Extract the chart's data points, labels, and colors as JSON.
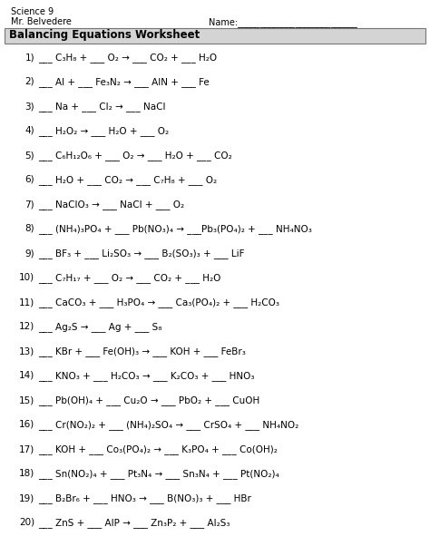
{
  "title": "Balancing Equations Worksheet",
  "header_line1": "Science 9",
  "header_line2": "Mr. Belvedere",
  "name_label": "Name:___________________________",
  "background": "#ffffff",
  "header_bg": "#d4d4d4",
  "fig_width": 4.74,
  "fig_height": 6.13,
  "dpi": 100,
  "equations": [
    [
      "1)",
      "___ C₃H₈ + ___ O₂ → ___ CO₂ + ___ H₂O"
    ],
    [
      "2)",
      "___ Al + ___ Fe₃N₂ → ___ AlN + ___ Fe"
    ],
    [
      "3)",
      "___ Na + ___ Cl₂ → ___ NaCl"
    ],
    [
      "4)",
      "___ H₂O₂ → ___ H₂O + ___ O₂"
    ],
    [
      "5)",
      "___ C₆H₁₂O₆ + ___ O₂ → ___ H₂O + ___ CO₂"
    ],
    [
      "6)",
      "___ H₂O + ___ CO₂ → ___ C₇H₈ + ___ O₂"
    ],
    [
      "7)",
      "___ NaClO₃ → ___ NaCl + ___ O₂"
    ],
    [
      "8)",
      "___ (NH₄)₃PO₄ + ___ Pb(NO₃)₄ → ___Pb₃(PO₄)₂ + ___ NH₄NO₃"
    ],
    [
      "9)",
      "___ BF₃ + ___ Li₂SO₃ → ___ B₂(SO₃)₃ + ___ LiF"
    ],
    [
      "10)",
      "___ C₇H₁₇ + ___ O₂ → ___ CO₂ + ___ H₂O"
    ],
    [
      "11)",
      "___ CaCO₃ + ___ H₃PO₄ → ___ Ca₃(PO₄)₂ + ___ H₂CO₃"
    ],
    [
      "12)",
      "___ Ag₂S → ___ Ag + ___ S₈"
    ],
    [
      "13)",
      "___ KBr + ___ Fe(OH)₃ → ___ KOH + ___ FeBr₃"
    ],
    [
      "14)",
      "___ KNO₃ + ___ H₂CO₃ → ___ K₂CO₃ + ___ HNO₃"
    ],
    [
      "15)",
      "___ Pb(OH)₄ + ___ Cu₂O → ___ PbO₂ + ___ CuOH"
    ],
    [
      "16)",
      "___ Cr(NO₂)₂ + ___ (NH₄)₂SO₄ → ___ CrSO₄ + ___ NH₄NO₂"
    ],
    [
      "17)",
      "___ KOH + ___ Co₃(PO₄)₂ → ___ K₃PO₄ + ___ Co(OH)₂"
    ],
    [
      "18)",
      "___ Sn(NO₂)₄ + ___ Pt₃N₄ → ___ Sn₃N₄ + ___ Pt(NO₂)₄"
    ],
    [
      "19)",
      "___ B₂Br₆ + ___ HNO₃ → ___ B(NO₃)₃ + ___ HBr"
    ],
    [
      "20)",
      "___ ZnS + ___ AlP → ___ Zn₃P₂ + ___ Al₂S₃"
    ]
  ]
}
